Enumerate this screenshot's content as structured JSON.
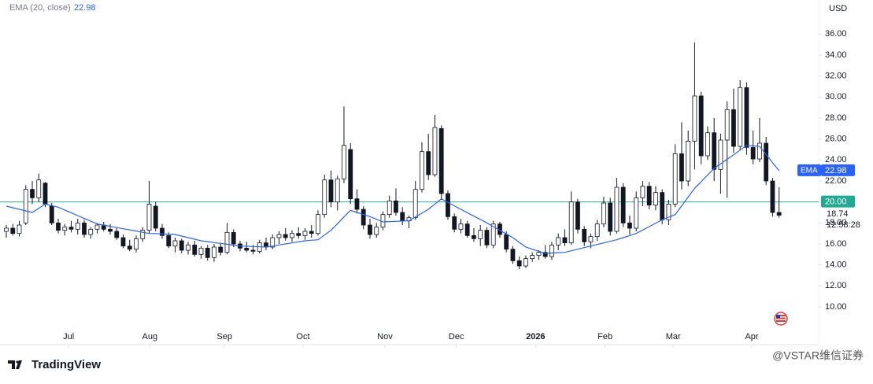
{
  "header": {
    "indicator": "EMA (20, close)",
    "currency": "USD"
  },
  "footer": {
    "brand": "TradingView",
    "watermark": "@VSTAR维信证券"
  },
  "chart_data": {
    "type": "candlestick",
    "candles": [
      [
        17.2,
        17.8,
        16.6,
        17.5
      ],
      [
        17.5,
        17.9,
        16.8,
        17.0
      ],
      [
        17.0,
        18.2,
        16.7,
        17.8
      ],
      [
        18.0,
        21.6,
        17.8,
        21.2
      ],
      [
        21.2,
        22.0,
        19.8,
        20.4
      ],
      [
        20.4,
        22.7,
        20.0,
        22.1
      ],
      [
        21.8,
        21.9,
        19.5,
        19.8
      ],
      [
        19.6,
        19.9,
        17.8,
        18.0
      ],
      [
        18.0,
        18.4,
        17.0,
        17.3
      ],
      [
        17.3,
        17.9,
        16.8,
        17.6
      ],
      [
        17.6,
        18.2,
        17.1,
        17.4
      ],
      [
        17.4,
        18.4,
        16.9,
        18.0
      ],
      [
        18.0,
        18.3,
        16.6,
        16.9
      ],
      [
        16.9,
        17.6,
        16.5,
        17.4
      ],
      [
        17.4,
        18.0,
        17.0,
        17.8
      ],
      [
        17.8,
        18.1,
        17.2,
        17.4
      ],
      [
        17.4,
        17.9,
        16.9,
        17.2
      ],
      [
        17.2,
        17.5,
        16.4,
        16.6
      ],
      [
        16.6,
        16.9,
        15.6,
        15.8
      ],
      [
        15.8,
        16.4,
        15.3,
        15.5
      ],
      [
        15.5,
        16.8,
        15.2,
        16.5
      ],
      [
        16.5,
        17.6,
        16.2,
        17.3
      ],
      [
        17.3,
        22.0,
        17.0,
        19.8
      ],
      [
        19.6,
        20.0,
        17.2,
        17.5
      ],
      [
        17.5,
        17.9,
        16.5,
        16.8
      ],
      [
        16.8,
        17.1,
        15.6,
        15.8
      ],
      [
        15.8,
        16.6,
        15.2,
        16.3
      ],
      [
        16.3,
        16.5,
        15.1,
        15.4
      ],
      [
        15.4,
        16.2,
        15.0,
        15.9
      ],
      [
        15.9,
        16.3,
        14.8,
        15.0
      ],
      [
        15.0,
        15.8,
        14.6,
        15.6
      ],
      [
        15.6,
        15.9,
        14.4,
        14.7
      ],
      [
        14.7,
        16.0,
        14.3,
        15.7
      ],
      [
        15.7,
        16.1,
        14.9,
        15.2
      ],
      [
        15.2,
        18.0,
        15.0,
        17.1
      ],
      [
        17.1,
        17.4,
        15.7,
        16.0
      ],
      [
        16.0,
        16.3,
        15.3,
        15.6
      ],
      [
        15.6,
        16.2,
        15.2,
        15.4
      ],
      [
        15.4,
        15.9,
        15.0,
        15.3
      ],
      [
        15.3,
        16.4,
        15.1,
        16.1
      ],
      [
        16.1,
        16.6,
        15.4,
        15.7
      ],
      [
        15.7,
        16.9,
        15.5,
        16.6
      ],
      [
        16.6,
        17.2,
        16.0,
        16.9
      ],
      [
        16.9,
        17.5,
        16.3,
        16.6
      ],
      [
        16.6,
        17.3,
        16.2,
        17.0
      ],
      [
        17.0,
        17.6,
        16.5,
        16.8
      ],
      [
        16.8,
        17.5,
        16.4,
        17.2
      ],
      [
        17.2,
        17.8,
        16.6,
        17.0
      ],
      [
        17.0,
        19.2,
        16.8,
        18.8
      ],
      [
        18.8,
        22.6,
        18.5,
        22.1
      ],
      [
        22.1,
        23.0,
        19.5,
        20.0
      ],
      [
        20.0,
        22.5,
        19.2,
        22.2
      ],
      [
        22.2,
        29.1,
        21.8,
        25.4
      ],
      [
        25.0,
        25.6,
        19.8,
        20.3
      ],
      [
        20.3,
        21.2,
        18.9,
        19.3
      ],
      [
        19.3,
        19.6,
        17.4,
        17.8
      ],
      [
        17.8,
        18.4,
        16.5,
        16.9
      ],
      [
        16.9,
        18.0,
        16.6,
        17.6
      ],
      [
        17.6,
        19.1,
        17.3,
        18.8
      ],
      [
        18.8,
        20.6,
        18.5,
        20.1
      ],
      [
        20.1,
        21.3,
        18.7,
        19.0
      ],
      [
        19.0,
        19.5,
        17.8,
        18.2
      ],
      [
        18.2,
        18.7,
        17.5,
        18.5
      ],
      [
        18.5,
        22.0,
        18.3,
        21.2
      ],
      [
        21.2,
        25.7,
        20.9,
        24.8
      ],
      [
        24.8,
        26.5,
        22.1,
        22.6
      ],
      [
        22.6,
        28.3,
        22.4,
        27.1
      ],
      [
        27.0,
        27.3,
        20.2,
        20.8
      ],
      [
        20.8,
        21.1,
        18.3,
        18.6
      ],
      [
        18.6,
        18.9,
        17.1,
        17.4
      ],
      [
        17.4,
        18.4,
        17.0,
        17.9
      ],
      [
        17.9,
        18.2,
        16.6,
        16.8
      ],
      [
        16.8,
        17.5,
        16.2,
        16.5
      ],
      [
        16.5,
        17.8,
        15.8,
        17.3
      ],
      [
        17.3,
        17.6,
        15.6,
        15.9
      ],
      [
        15.9,
        18.2,
        15.6,
        17.9
      ],
      [
        17.9,
        18.1,
        16.6,
        16.9
      ],
      [
        16.9,
        17.2,
        15.2,
        15.5
      ],
      [
        15.5,
        15.8,
        14.1,
        14.4
      ],
      [
        14.4,
        14.8,
        13.6,
        13.9
      ],
      [
        13.9,
        14.9,
        13.7,
        14.6
      ],
      [
        14.6,
        15.2,
        14.3,
        14.9
      ],
      [
        14.9,
        15.4,
        14.5,
        15.2
      ],
      [
        15.2,
        15.9,
        14.6,
        14.8
      ],
      [
        14.8,
        16.2,
        14.5,
        15.9
      ],
      [
        15.9,
        17.0,
        15.4,
        16.6
      ],
      [
        16.6,
        17.4,
        15.8,
        16.1
      ],
      [
        16.1,
        21.0,
        15.9,
        20.0
      ],
      [
        20.0,
        20.3,
        17.0,
        17.4
      ],
      [
        17.4,
        17.7,
        15.8,
        16.2
      ],
      [
        16.2,
        17.0,
        15.6,
        16.7
      ],
      [
        16.7,
        18.3,
        16.3,
        17.9
      ],
      [
        17.9,
        20.5,
        17.6,
        19.9
      ],
      [
        19.9,
        20.4,
        16.8,
        17.2
      ],
      [
        17.2,
        22.3,
        17.0,
        21.4
      ],
      [
        21.4,
        21.8,
        17.6,
        18.0
      ],
      [
        18.0,
        18.7,
        16.9,
        17.5
      ],
      [
        17.5,
        21.0,
        17.2,
        20.4
      ],
      [
        20.4,
        22.0,
        19.6,
        21.5
      ],
      [
        21.5,
        21.9,
        19.3,
        19.7
      ],
      [
        19.7,
        21.5,
        19.2,
        20.9
      ],
      [
        20.9,
        21.2,
        17.9,
        18.3
      ],
      [
        18.3,
        20.2,
        17.8,
        19.8
      ],
      [
        19.8,
        25.5,
        19.5,
        24.6
      ],
      [
        24.6,
        27.6,
        21.2,
        22.0
      ],
      [
        22.0,
        26.8,
        21.5,
        25.8
      ],
      [
        25.8,
        35.2,
        23.1,
        30.1
      ],
      [
        30.1,
        30.5,
        23.6,
        24.4
      ],
      [
        24.4,
        27.2,
        24.0,
        26.6
      ],
      [
        26.6,
        28.0,
        22.0,
        23.1
      ],
      [
        23.1,
        26.5,
        20.8,
        25.9
      ],
      [
        25.9,
        29.6,
        20.4,
        28.8
      ],
      [
        28.8,
        30.8,
        24.7,
        25.3
      ],
      [
        25.3,
        31.6,
        25.0,
        30.9
      ],
      [
        30.9,
        31.4,
        24.5,
        25.2
      ],
      [
        25.2,
        26.8,
        23.6,
        24.1
      ],
      [
        24.1,
        28.0,
        23.8,
        25.6
      ],
      [
        25.6,
        26.2,
        21.6,
        22.0
      ],
      [
        22.0,
        22.3,
        18.6,
        19.0
      ],
      [
        19.0,
        21.4,
        18.5,
        18.74
      ]
    ],
    "up_color": "#ffffff",
    "down_color": "#131722",
    "ema": {
      "name": "EMA",
      "color": "#2962ff",
      "values": [
        19.6,
        19.45,
        19.3,
        19.15,
        19.0,
        19.4,
        19.8,
        19.65,
        19.5,
        19.23,
        18.97,
        18.7,
        18.43,
        18.17,
        17.9,
        17.79,
        17.68,
        17.56,
        17.45,
        17.34,
        17.23,
        17.11,
        17.0,
        16.98,
        16.95,
        16.93,
        16.9,
        16.75,
        16.6,
        16.45,
        16.3,
        16.22,
        16.13,
        16.05,
        15.97,
        15.88,
        15.8,
        15.78,
        15.75,
        15.73,
        15.7,
        15.8,
        15.9,
        16.0,
        16.1,
        16.2,
        16.3,
        16.35,
        16.4,
        16.85,
        17.3,
        17.93,
        18.57,
        19.2,
        19.0,
        18.8,
        18.6,
        18.35,
        18.1,
        18.13,
        18.15,
        18.18,
        18.2,
        18.57,
        18.93,
        19.3,
        19.8,
        20.3,
        19.97,
        19.63,
        19.3,
        18.98,
        18.65,
        18.33,
        18.0,
        17.65,
        17.3,
        16.95,
        16.6,
        16.15,
        15.7,
        15.5,
        15.3,
        15.1,
        15.13,
        15.17,
        15.2,
        15.35,
        15.5,
        15.65,
        15.8,
        15.95,
        16.1,
        16.25,
        16.4,
        16.6,
        16.8,
        17.0,
        17.33,
        17.65,
        17.98,
        18.3,
        18.55,
        18.8,
        19.63,
        20.47,
        21.3,
        21.93,
        22.57,
        23.2,
        23.63,
        24.07,
        24.5,
        24.95,
        25.4,
        25.35,
        25.3,
        24.53,
        23.75,
        22.98
      ]
    },
    "level": {
      "value": 20,
      "label": "20.00",
      "color": "#22ab94"
    },
    "countdown": "12:58:28",
    "xlim": [
      -0.97,
      125.1
    ],
    "ylim": [
      6.4,
      37.9
    ],
    "xticks": [
      {
        "value": 9.6,
        "label": "Jul"
      },
      {
        "value": 22.1,
        "label": "Aug"
      },
      {
        "value": 33.6,
        "label": "Sep"
      },
      {
        "value": 45.7,
        "label": "Oct"
      },
      {
        "value": 58.3,
        "label": "Nov"
      },
      {
        "value": 69.3,
        "label": "Dec"
      },
      {
        "value": 81.5,
        "label": "2026"
      },
      {
        "value": 92.2,
        "label": "Feb"
      },
      {
        "value": 102.7,
        "label": "Mar"
      },
      {
        "value": 114.8,
        "label": "Apr"
      }
    ],
    "yticks": [
      {
        "value": 10,
        "label": "10.00"
      },
      {
        "value": 12,
        "label": "12.00"
      },
      {
        "value": 14,
        "label": "14.00"
      },
      {
        "value": 16,
        "label": "16.00"
      },
      {
        "value": 18,
        "label": "18.00"
      },
      {
        "value": 20,
        "label": "20.00"
      },
      {
        "value": 22,
        "label": "22.00"
      },
      {
        "value": 24,
        "label": "24.00"
      },
      {
        "value": 26,
        "label": "26.00"
      },
      {
        "value": 28,
        "label": "28.00"
      },
      {
        "value": 30,
        "label": "30.00"
      },
      {
        "value": 32,
        "label": "32.00"
      },
      {
        "value": 34,
        "label": "34.00"
      },
      {
        "value": 36,
        "label": "36.00"
      }
    ]
  }
}
